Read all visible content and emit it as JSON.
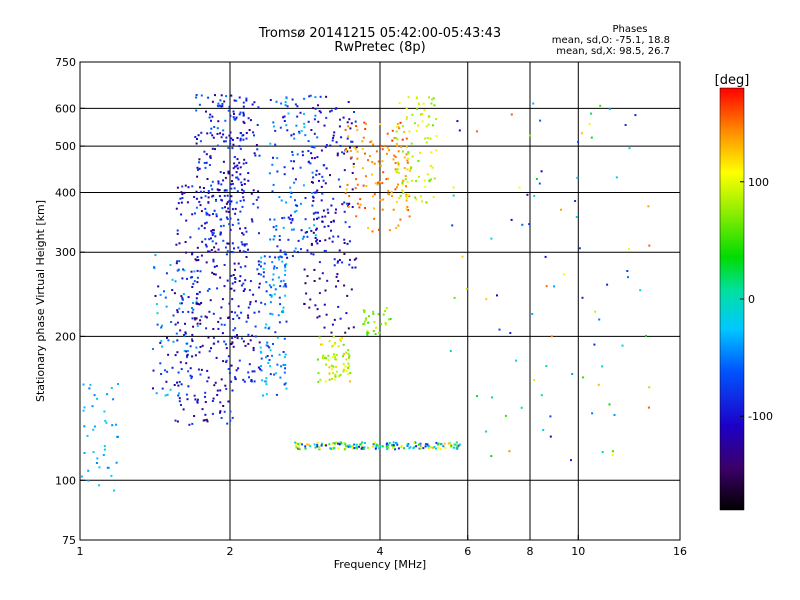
{
  "header": {
    "title_line1": "Tromsø 20141215 05:42:00-05:43:43",
    "title_line2": "RwPretec (8p)",
    "stats_title": "Phases",
    "stats_o": "mean, sd,O: -75.1, 18.8",
    "stats_x": "mean, sd,X:  98.5, 26.7"
  },
  "colorbar": {
    "label": "[deg]",
    "min": -180,
    "max": 180,
    "ticks": [
      {
        "value": 100,
        "label": "100"
      },
      {
        "value": 0,
        "label": "0"
      },
      {
        "value": -100,
        "label": "-100"
      }
    ]
  },
  "chart_data": {
    "type": "scatter",
    "title": "Tromsø 20141215 05:42:00-05:43:43",
    "subtitle": "RwPretec (8p)",
    "xlabel": "Frequency [MHz]",
    "ylabel": "Stationary phase Virtual Height [km]",
    "xscale": "log",
    "yscale": "log",
    "xlim": [
      1,
      16
    ],
    "ylim": [
      75,
      750
    ],
    "xticks": [
      {
        "value": 1,
        "label": "1"
      },
      {
        "value": 2,
        "label": "2"
      },
      {
        "value": 4,
        "label": "4"
      },
      {
        "value": 6,
        "label": "6"
      },
      {
        "value": 8,
        "label": "8"
      },
      {
        "value": 10,
        "label": "10"
      },
      {
        "value": 16,
        "label": "16"
      }
    ],
    "yticks": [
      {
        "value": 75,
        "label": "75"
      },
      {
        "value": 100,
        "label": "100"
      },
      {
        "value": 200,
        "label": "200"
      },
      {
        "value": 300,
        "label": "300"
      },
      {
        "value": 400,
        "label": "400"
      },
      {
        "value": 500,
        "label": "500"
      },
      {
        "value": 600,
        "label": "600"
      },
      {
        "value": 750,
        "label": "750"
      }
    ],
    "grid": true,
    "colorscale": "phase [deg], -180 (black) to 180 (red)",
    "clusters": [
      {
        "x": [
          1.0,
          1.2
        ],
        "y": [
          95,
          160
        ],
        "phase": [
          -10,
          -50
        ],
        "n": 40
      },
      {
        "x": [
          1.4,
          1.75
        ],
        "y": [
          150,
          300
        ],
        "phase": [
          -10,
          -130
        ],
        "n": 90
      },
      {
        "x": [
          1.55,
          2.05
        ],
        "y": [
          130,
          420
        ],
        "phase": [
          -60,
          -150
        ],
        "n": 260
      },
      {
        "x": [
          1.7,
          2.15
        ],
        "y": [
          300,
          640
        ],
        "phase": [
          -50,
          -140
        ],
        "n": 180
      },
      {
        "x": [
          2.0,
          2.3
        ],
        "y": [
          160,
          640
        ],
        "phase": [
          -70,
          -130
        ],
        "n": 160
      },
      {
        "x": [
          2.3,
          2.6
        ],
        "y": [
          150,
          300
        ],
        "phase": [
          -10,
          -90
        ],
        "n": 110
      },
      {
        "x": [
          2.4,
          3.0
        ],
        "y": [
          290,
          640
        ],
        "phase": [
          -20,
          -110
        ],
        "n": 140
      },
      {
        "x": [
          2.9,
          3.6
        ],
        "y": [
          280,
          640
        ],
        "phase": [
          -70,
          -150
        ],
        "n": 150
      },
      {
        "x": [
          2.8,
          3.6
        ],
        "y": [
          200,
          280
        ],
        "phase": [
          -90,
          -160
        ],
        "n": 40
      },
      {
        "x": [
          3.0,
          3.5
        ],
        "y": [
          160,
          200
        ],
        "phase": [
          60,
          130
        ],
        "n": 70
      },
      {
        "x": [
          3.4,
          4.6
        ],
        "y": [
          330,
          560
        ],
        "phase": [
          120,
          170
        ],
        "n": 130
      },
      {
        "x": [
          4.3,
          5.2
        ],
        "y": [
          380,
          640
        ],
        "phase": [
          60,
          120
        ],
        "n": 90
      },
      {
        "x": [
          3.7,
          4.2
        ],
        "y": [
          200,
          230
        ],
        "phase": [
          40,
          90
        ],
        "n": 30
      },
      {
        "x": [
          2.7,
          5.8
        ],
        "y": [
          116,
          120
        ],
        "phase": [
          -100,
          130
        ],
        "n": 170
      },
      {
        "x": [
          5.5,
          14.0
        ],
        "y": [
          110,
          640
        ],
        "phase": [
          -120,
          160
        ],
        "n": 90
      }
    ]
  }
}
